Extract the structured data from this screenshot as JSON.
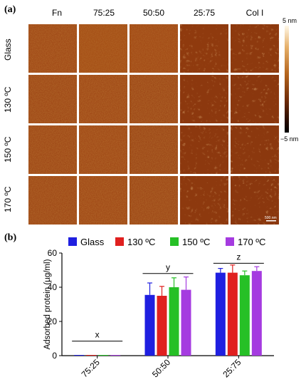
{
  "panel_a": {
    "label": "(a)",
    "columns": [
      "Fn",
      "75:25",
      "50:50",
      "25:75",
      "Col I"
    ],
    "rows": [
      "Glass",
      "130 ºC",
      "150 ºC",
      "170 ºC"
    ],
    "colorbar": {
      "max_label": "5 nm",
      "min_label": "−5 nm"
    },
    "scale_bar_label": "500 nm"
  },
  "panel_b": {
    "label": "(b)",
    "chart_data": {
      "type": "bar",
      "ylabel": "Adsorbed protein (µg/ml)",
      "ylim": [
        0,
        60
      ],
      "yticks": [
        0,
        20,
        40,
        60
      ],
      "categories": [
        "75:25",
        "50:50",
        "25:75"
      ],
      "legend_position": "top",
      "series": [
        {
          "name": "Glass",
          "color": "#1f1fe0",
          "values": [
            0,
            35.5,
            48.5
          ],
          "errors": [
            0,
            7,
            2.5
          ]
        },
        {
          "name": "130 ºC",
          "color": "#e0201f",
          "values": [
            0,
            35,
            48.5
          ],
          "errors": [
            0,
            5.5,
            4.5
          ]
        },
        {
          "name": "150 ºC",
          "color": "#26c026",
          "values": [
            0,
            40,
            47
          ],
          "errors": [
            0,
            5.5,
            2.5
          ]
        },
        {
          "name": "170 ºC",
          "color": "#a53be0",
          "values": [
            0,
            38.5,
            49.5
          ],
          "errors": [
            0,
            7.5,
            2.5
          ]
        }
      ],
      "annotations": [
        {
          "text": "x",
          "category": "75:25",
          "line_y": 8.5
        },
        {
          "text": "y",
          "category": "50:50",
          "line_y": 48
        },
        {
          "text": "z",
          "category": "25:75",
          "line_y": 54
        }
      ]
    }
  }
}
